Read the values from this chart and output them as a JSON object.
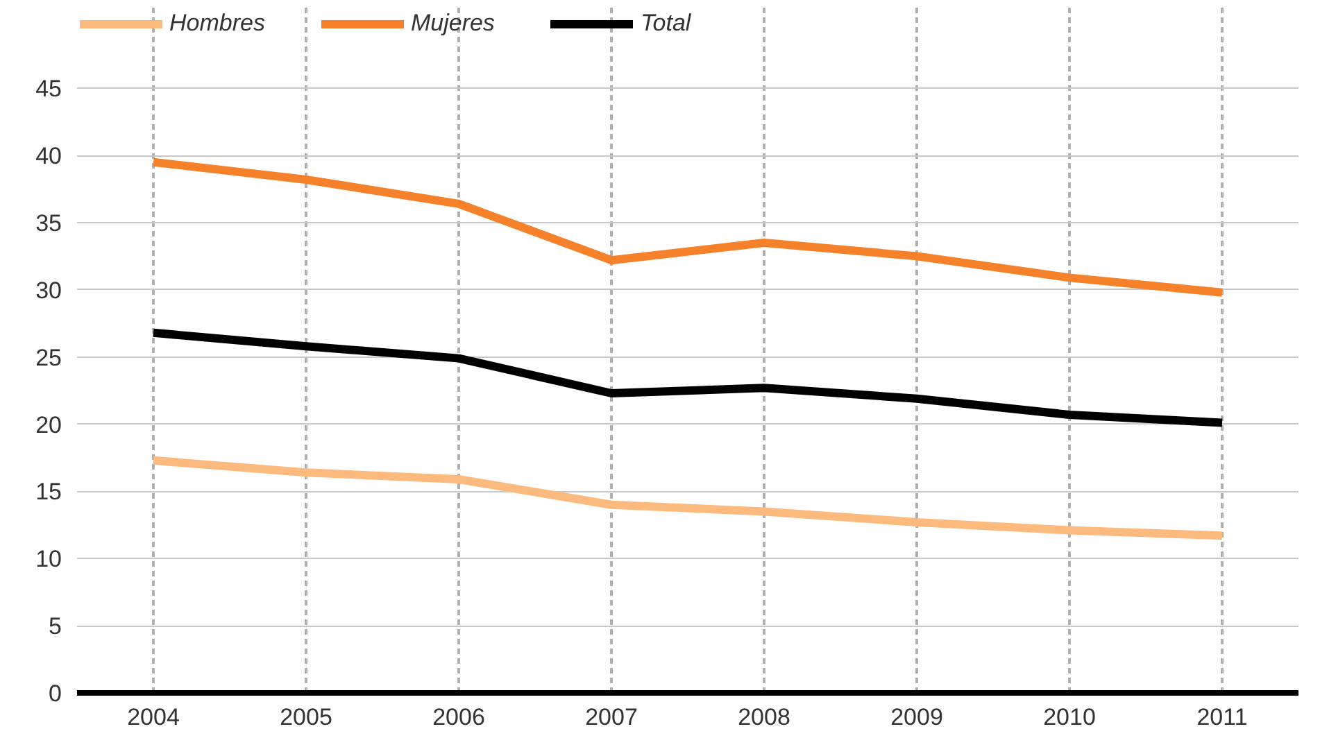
{
  "chart_data": {
    "type": "line",
    "categories": [
      "2004",
      "2005",
      "2006",
      "2007",
      "2008",
      "2009",
      "2010",
      "2011"
    ],
    "series": [
      {
        "name": "Hombres",
        "color": "#fdba7e",
        "values": [
          17.3,
          16.4,
          15.9,
          14.0,
          13.5,
          12.7,
          12.1,
          11.7
        ]
      },
      {
        "name": "Mujeres",
        "color": "#f5822a",
        "values": [
          39.5,
          38.2,
          36.4,
          32.2,
          33.5,
          32.5,
          30.9,
          29.8
        ]
      },
      {
        "name": "Total",
        "color": "#000000",
        "values": [
          26.8,
          25.8,
          24.9,
          22.3,
          22.7,
          21.9,
          20.7,
          20.1
        ]
      }
    ],
    "ylim": [
      0,
      51
    ],
    "yticks": [
      0,
      5,
      10,
      15,
      20,
      25,
      30,
      35,
      40,
      45
    ],
    "grid": true,
    "legend": "top left",
    "marker": "none",
    "line_style": "solid"
  }
}
